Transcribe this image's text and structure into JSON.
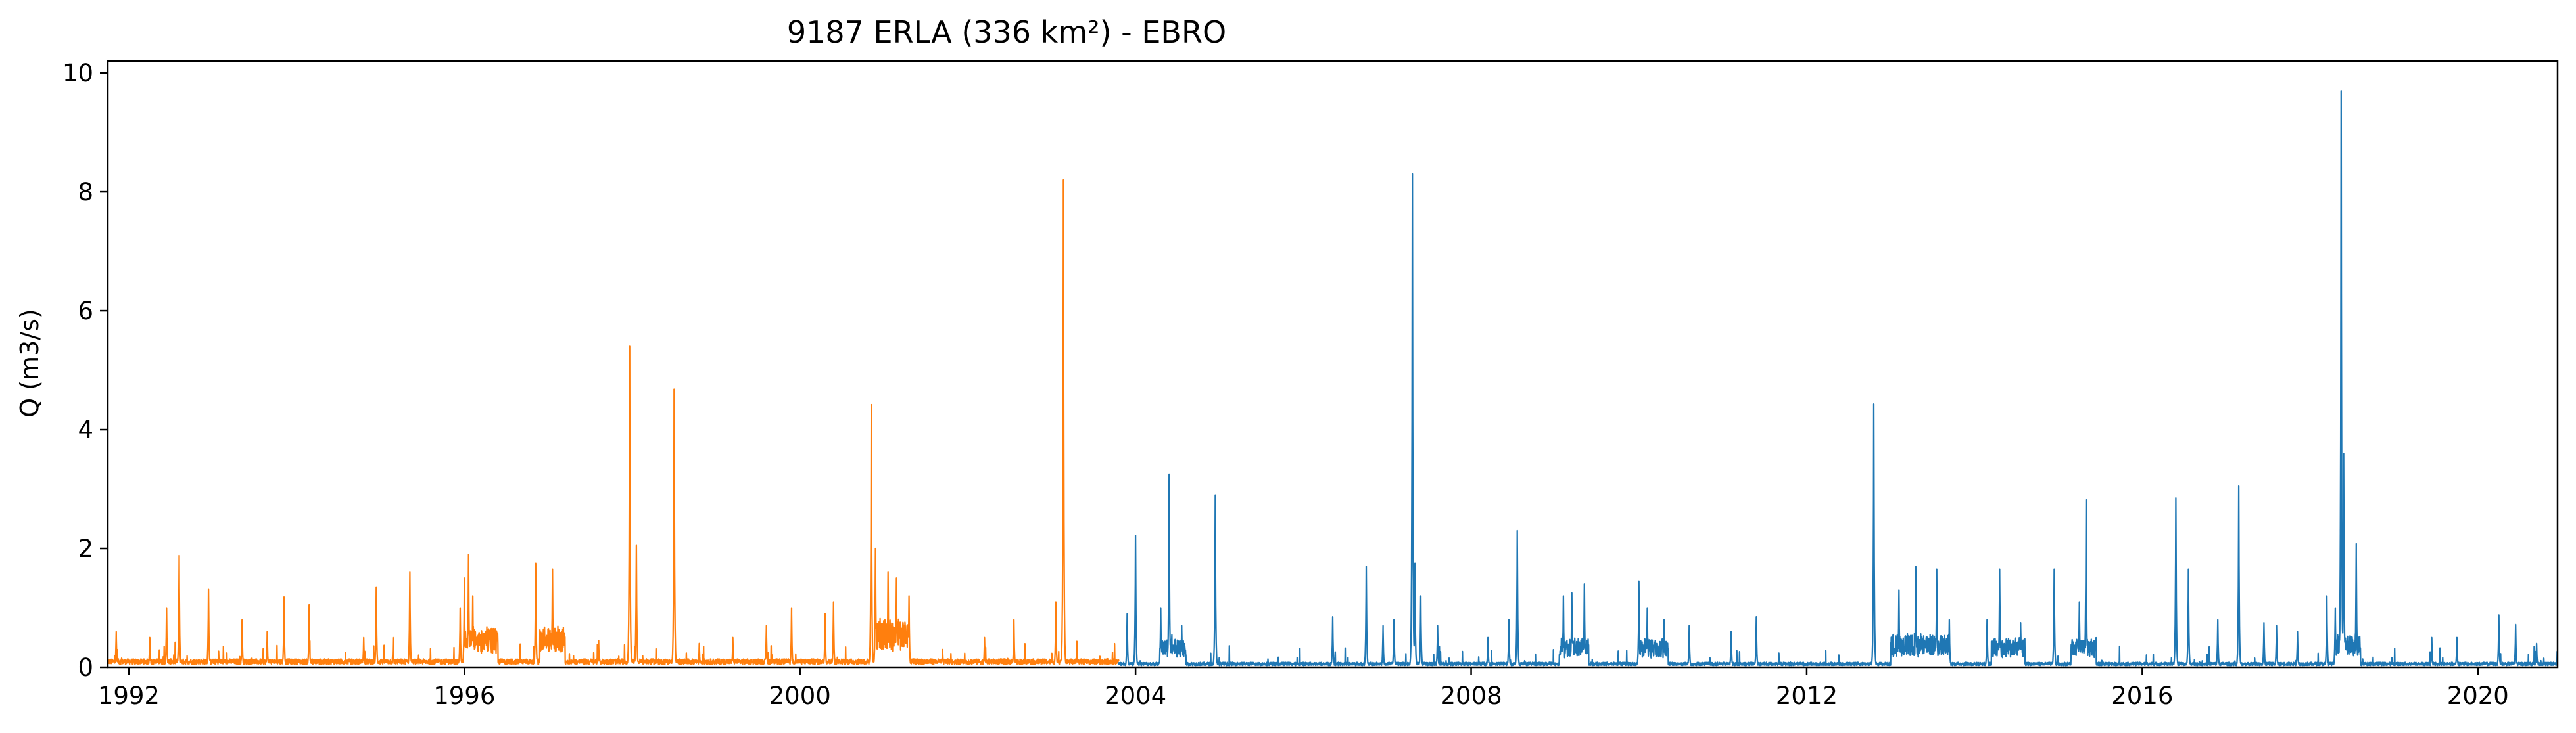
{
  "chart_data": {
    "type": "line",
    "title": "9187 ERLA (336 km²) - EBRO",
    "xlabel": "",
    "ylabel": "Q (m3/s)",
    "xlim": [
      1991.75,
      2020.95
    ],
    "ylim": [
      0,
      10.2
    ],
    "x_ticks": [
      1992,
      1996,
      2000,
      2004,
      2008,
      2012,
      2016,
      2020
    ],
    "y_ticks": [
      0,
      2,
      4,
      6,
      8,
      10
    ],
    "x_tick_labels": [
      "1992",
      "1996",
      "2000",
      "2004",
      "2008",
      "2012",
      "2016",
      "2020"
    ],
    "y_tick_labels": [
      "0",
      "2",
      "4",
      "6",
      "8",
      "10"
    ],
    "grid": false,
    "legend": "none",
    "series": [
      {
        "color": "#ff7f0e",
        "x_range": [
          1991.75,
          2003.8
        ],
        "base_flow": 0.1,
        "peaks": [
          [
            1991.85,
            0.6
          ],
          [
            1992.25,
            0.5
          ],
          [
            1992.45,
            1.0
          ],
          [
            1992.6,
            1.88
          ],
          [
            1992.95,
            1.32
          ],
          [
            1993.35,
            0.8
          ],
          [
            1993.65,
            0.6
          ],
          [
            1993.85,
            1.18
          ],
          [
            1994.15,
            1.05
          ],
          [
            1994.8,
            0.5
          ],
          [
            1994.95,
            1.35
          ],
          [
            1995.15,
            0.5
          ],
          [
            1995.35,
            1.6
          ],
          [
            1995.95,
            1.0
          ],
          [
            1996.0,
            1.5
          ],
          [
            1996.05,
            1.9
          ],
          [
            1996.1,
            1.2
          ],
          [
            1996.85,
            1.75
          ],
          [
            1997.05,
            1.65
          ],
          [
            1997.6,
            0.45
          ],
          [
            1997.97,
            5.4
          ],
          [
            1998.05,
            2.05
          ],
          [
            1998.5,
            4.68
          ],
          [
            1998.8,
            0.4
          ],
          [
            1999.2,
            0.5
          ],
          [
            1999.6,
            0.7
          ],
          [
            1999.9,
            1.0
          ],
          [
            2000.3,
            0.9
          ],
          [
            2000.4,
            1.1
          ],
          [
            2000.85,
            4.42
          ],
          [
            2000.9,
            2.0
          ],
          [
            2001.05,
            1.6
          ],
          [
            2001.15,
            1.5
          ],
          [
            2001.3,
            1.2
          ],
          [
            2001.7,
            0.3
          ],
          [
            2002.2,
            0.5
          ],
          [
            2002.55,
            0.8
          ],
          [
            2003.05,
            1.1
          ],
          [
            2003.14,
            8.2
          ],
          [
            2003.3,
            0.4
          ]
        ],
        "active_segments": [
          [
            1996.0,
            1996.4,
            0.4
          ],
          [
            1996.9,
            1997.2,
            0.4
          ],
          [
            2000.9,
            2001.3,
            0.5
          ]
        ]
      },
      {
        "color": "#1f77b4",
        "x_range": [
          2003.8,
          2020.95
        ],
        "base_flow": 0.06,
        "peaks": [
          [
            2003.9,
            0.9
          ],
          [
            2004.0,
            2.22
          ],
          [
            2004.3,
            1.0
          ],
          [
            2004.4,
            3.25
          ],
          [
            2004.55,
            0.7
          ],
          [
            2004.95,
            2.9
          ],
          [
            2006.35,
            0.85
          ],
          [
            2006.75,
            1.7
          ],
          [
            2006.95,
            0.7
          ],
          [
            2007.08,
            0.8
          ],
          [
            2007.3,
            8.3
          ],
          [
            2007.33,
            1.75
          ],
          [
            2007.4,
            1.2
          ],
          [
            2007.6,
            0.7
          ],
          [
            2008.2,
            0.5
          ],
          [
            2008.45,
            0.8
          ],
          [
            2008.55,
            2.3
          ],
          [
            2009.1,
            1.2
          ],
          [
            2009.2,
            1.25
          ],
          [
            2009.35,
            1.4
          ],
          [
            2010.0,
            1.45
          ],
          [
            2010.1,
            1.0
          ],
          [
            2010.3,
            0.8
          ],
          [
            2010.6,
            0.7
          ],
          [
            2011.1,
            0.6
          ],
          [
            2011.4,
            0.85
          ],
          [
            2012.8,
            4.43
          ],
          [
            2013.1,
            1.3
          ],
          [
            2013.3,
            1.7
          ],
          [
            2013.55,
            1.65
          ],
          [
            2013.7,
            0.8
          ],
          [
            2014.15,
            0.8
          ],
          [
            2014.3,
            1.65
          ],
          [
            2014.55,
            0.75
          ],
          [
            2014.95,
            1.65
          ],
          [
            2015.25,
            1.1
          ],
          [
            2015.33,
            2.82
          ],
          [
            2016.4,
            2.85
          ],
          [
            2016.55,
            1.65
          ],
          [
            2016.9,
            0.8
          ],
          [
            2017.15,
            3.05
          ],
          [
            2017.45,
            0.75
          ],
          [
            2017.6,
            0.7
          ],
          [
            2017.85,
            0.6
          ],
          [
            2018.2,
            1.2
          ],
          [
            2018.3,
            1.0
          ],
          [
            2018.37,
            9.7
          ],
          [
            2018.4,
            3.6
          ],
          [
            2018.55,
            2.08
          ],
          [
            2019.45,
            0.5
          ],
          [
            2019.75,
            0.5
          ],
          [
            2020.25,
            0.88
          ],
          [
            2020.45,
            0.72
          ],
          [
            2020.7,
            0.4
          ]
        ],
        "active_segments": [
          [
            2004.3,
            2004.6,
            0.3
          ],
          [
            2009.05,
            2009.4,
            0.3
          ],
          [
            2010.0,
            2010.35,
            0.3
          ],
          [
            2013.0,
            2013.7,
            0.35
          ],
          [
            2014.2,
            2014.6,
            0.3
          ],
          [
            2015.15,
            2015.45,
            0.3
          ],
          [
            2018.3,
            2018.6,
            0.35
          ]
        ]
      }
    ]
  }
}
